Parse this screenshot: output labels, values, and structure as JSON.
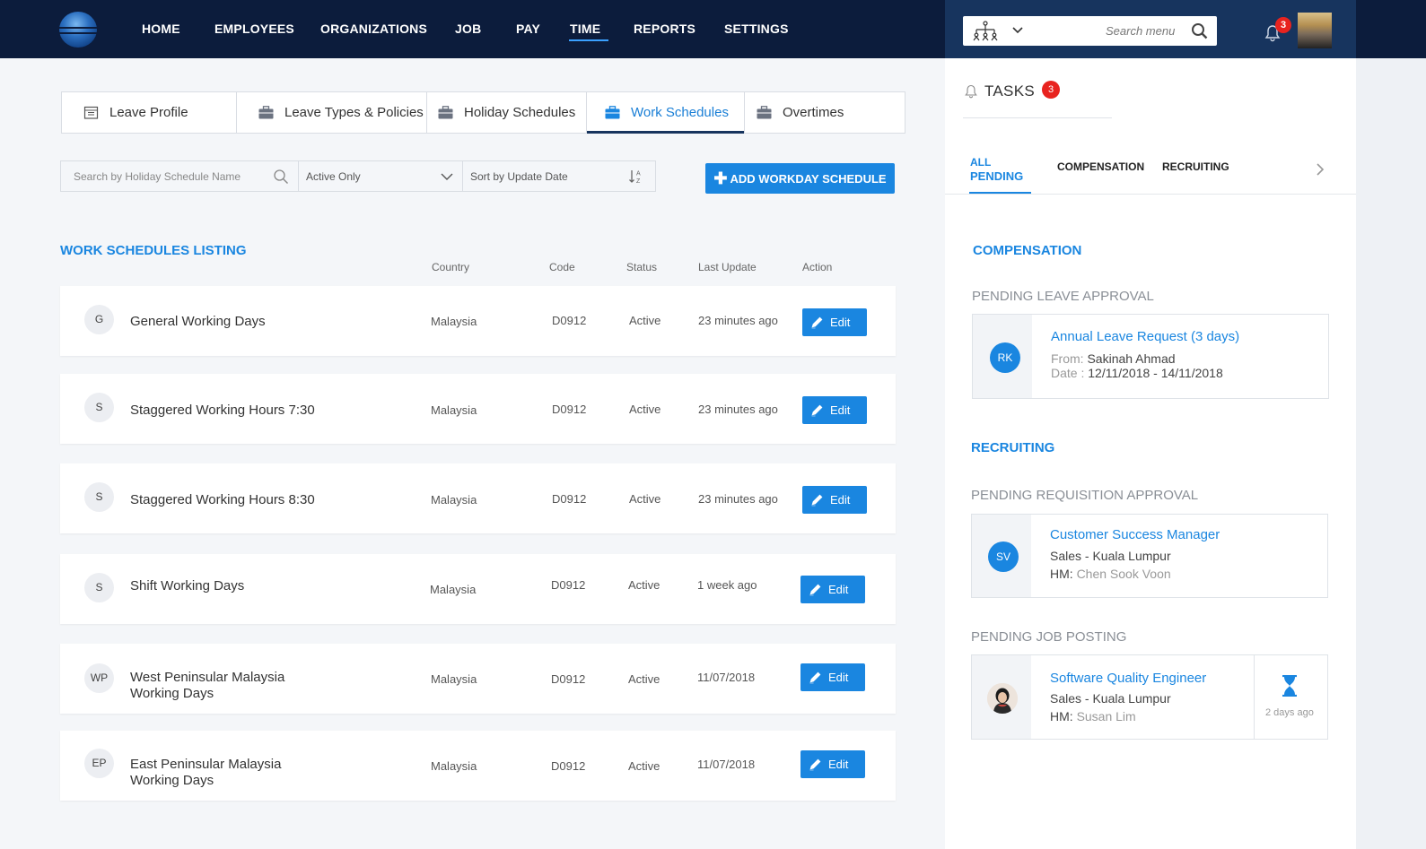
{
  "nav": {
    "items": [
      "HOME",
      "EMPLOYEES",
      "ORGANIZATIONS",
      "JOB",
      "PAY",
      "TIME",
      "REPORTS",
      "SETTINGS"
    ],
    "active": "TIME",
    "search_placeholder": "Search menu",
    "notification_count": "3"
  },
  "tabs": [
    {
      "label": "Leave Profile",
      "icon": "calendar-icon"
    },
    {
      "label": "Leave Types & Policies",
      "icon": "briefcase-icon"
    },
    {
      "label": "Holiday Schedules",
      "icon": "briefcase-icon"
    },
    {
      "label": "Work Schedules",
      "icon": "briefcase-icon",
      "active": true
    },
    {
      "label": "Overtimes",
      "icon": "briefcase-icon"
    }
  ],
  "filters": {
    "search_placeholder": "Search by Holiday Schedule Name",
    "status": "Active Only",
    "sort": "Sort by Update Date"
  },
  "add_button": "ADD WORKDAY SCHEDULE",
  "listing": {
    "title": "WORK SCHEDULES LISTING",
    "columns": [
      "Country",
      "Code",
      "Status",
      "Last Update",
      "Action"
    ],
    "rows": [
      {
        "badge": "G",
        "name": [
          "General Working Days"
        ],
        "country": "Malaysia",
        "code": "D0912",
        "status": "Active",
        "updated": "23 minutes ago",
        "action": "Edit"
      },
      {
        "badge": "S",
        "name": [
          "Staggered Working Hours 7:30"
        ],
        "country": "Malaysia",
        "code": "D0912",
        "status": "Active",
        "updated": "23 minutes ago",
        "action": "Edit"
      },
      {
        "badge": "S",
        "name": [
          "Staggered Working Hours 8:30"
        ],
        "country": "Malaysia",
        "code": "D0912",
        "status": "Active",
        "updated": "23 minutes ago",
        "action": "Edit"
      },
      {
        "badge": "S",
        "name": [
          "Shift Working Days"
        ],
        "country": "Malaysia",
        "code": "D0912",
        "status": "Active",
        "updated": "1 week ago",
        "action": "Edit"
      },
      {
        "badge": "WP",
        "name": [
          "West Peninsular Malaysia",
          "Working Days"
        ],
        "country": "Malaysia",
        "code": "D0912",
        "status": "Active",
        "updated": "11/07/2018",
        "action": "Edit"
      },
      {
        "badge": "EP",
        "name": [
          "East Peninsular Malaysia",
          "Working Days"
        ],
        "country": "Malaysia",
        "code": "D0912",
        "status": "Active",
        "updated": "11/07/2018",
        "action": "Edit"
      }
    ]
  },
  "tasks": {
    "title": "TASKS",
    "count": "3",
    "tabs": [
      "ALL PENDING",
      "COMPENSATION",
      "RECRUITING"
    ],
    "tab_all_line1": "ALL",
    "tab_all_line2": "PENDING",
    "compensation": {
      "title": "COMPENSATION",
      "subtitle": "PENDING LEAVE APPROVAL",
      "card": {
        "initials": "RK",
        "title": "Annual Leave Request (3 days)",
        "from_label": "From:",
        "from": "Sakinah Ahmad",
        "date_label": "Date :",
        "date": "12/11/2018 - 14/11/2018"
      }
    },
    "recruiting": {
      "title": "RECRUITING",
      "requisition_subtitle": "PENDING REQUISITION APPROVAL",
      "requisition_card": {
        "initials": "SV",
        "title": "Customer Success Manager",
        "dept": "Sales - Kuala Lumpur",
        "hm_label": "HM:",
        "hm": "Chen Sook Voon"
      },
      "posting_subtitle": "PENDING JOB POSTING",
      "posting_card": {
        "title": "Software Quality Engineer",
        "dept": "Sales - Kuala Lumpur",
        "hm_label": "HM:",
        "hm": "Susan Lim",
        "ago": "2 days ago"
      }
    }
  },
  "colors": {
    "nav_bg": "#0c1c3c",
    "accent": "#1a86e0",
    "badge_red": "#e8231f"
  }
}
